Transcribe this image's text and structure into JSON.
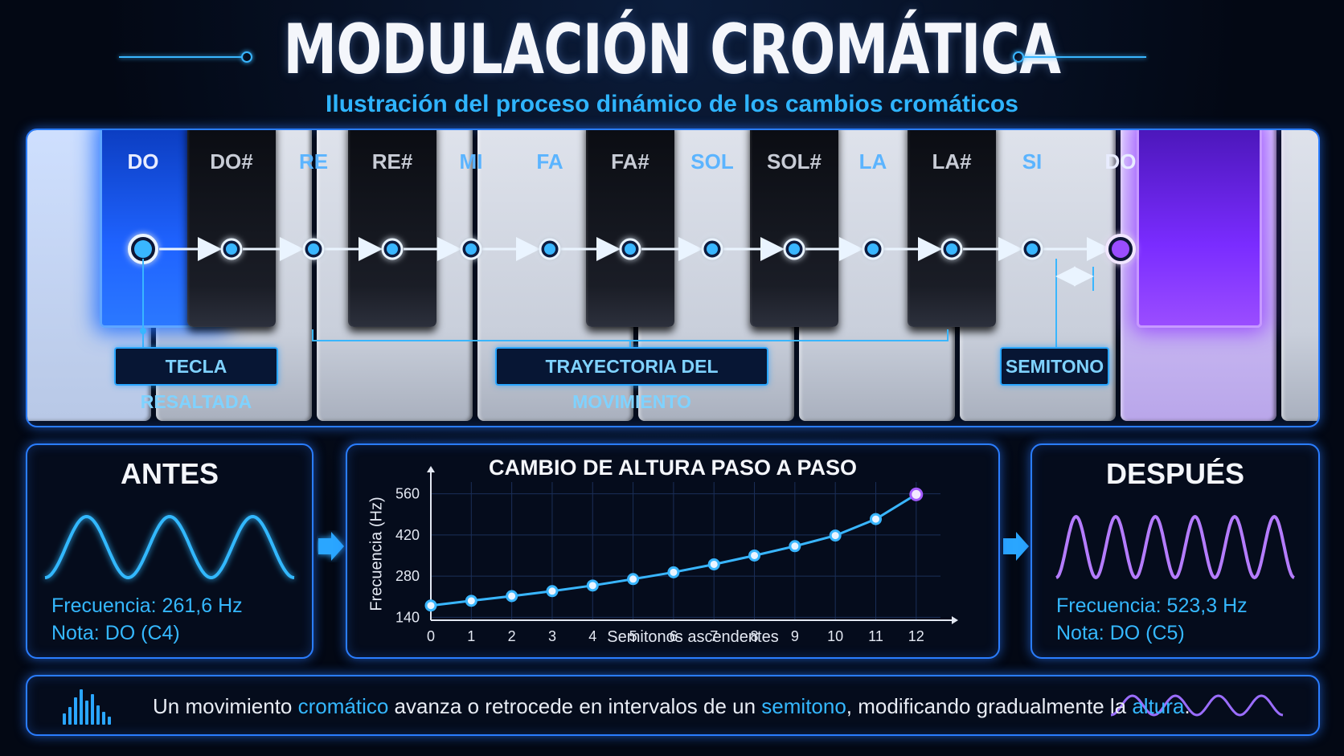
{
  "header": {
    "title": "MODULACIÓN CROMÁTICA",
    "subtitle": "Ilustración del proceso dinámico de los cambios cromáticos"
  },
  "piano": {
    "notes": [
      "DO",
      "DO#",
      "RE",
      "RE#",
      "MI",
      "FA",
      "FA#",
      "SOL",
      "SOL#",
      "LA",
      "LA#",
      "SI",
      "DO"
    ],
    "callouts": {
      "highlighted_key": "TECLA RESALTADA",
      "trajectory": "TRAYECTORIA DEL MOVIMIENTO",
      "semitone": "SEMITONO"
    },
    "colors": {
      "start": "#2f7bff",
      "end": "#9a4dff",
      "path": "#39b6ff"
    }
  },
  "before": {
    "title": "ANTES",
    "frequency": "Frecuencia: 261,6 Hz",
    "note": "Nota: DO (C4)",
    "wave_cycles": 3,
    "color": "#33b8ff"
  },
  "after": {
    "title": "DESPUÉS",
    "frequency": "Frecuencia: 523,3 Hz",
    "note": "Nota: DO (C5)",
    "wave_cycles": 6,
    "color": "#b57cff"
  },
  "chart_data": {
    "type": "line",
    "title": "CAMBIO DE ALTURA PASO A PASO",
    "xlabel": "Semitonos ascendentes",
    "ylabel": "Frecuencia (Hz)",
    "x": [
      0,
      1,
      2,
      3,
      4,
      5,
      6,
      7,
      8,
      9,
      10,
      11,
      12
    ],
    "y": [
      180,
      196,
      212,
      229,
      248,
      270,
      293,
      320,
      350,
      382,
      418,
      474,
      558
    ],
    "xticks": [
      "0",
      "1",
      "2",
      "3",
      "4",
      "5",
      "6",
      "7",
      "8",
      "9",
      "10",
      "11",
      "12"
    ],
    "yticks": [
      "140",
      "280",
      "420",
      "560"
    ],
    "ylim": [
      130,
      600
    ],
    "xlim": [
      0,
      12.6
    ],
    "grid": true
  },
  "caption": {
    "parts": [
      {
        "text": "Un movimiento ",
        "hl": false
      },
      {
        "text": "cromático",
        "hl": true
      },
      {
        "text": " avanza o retrocede en intervalos de un ",
        "hl": false
      },
      {
        "text": "semitono",
        "hl": true
      },
      {
        "text": ", modificando gradualmente la ",
        "hl": false
      },
      {
        "text": "altura",
        "hl": true
      },
      {
        "text": ".",
        "hl": false
      }
    ]
  },
  "icons": [
    "equalizer-bars-icon",
    "sine-wave-icon",
    "arrow-right-icon"
  ]
}
